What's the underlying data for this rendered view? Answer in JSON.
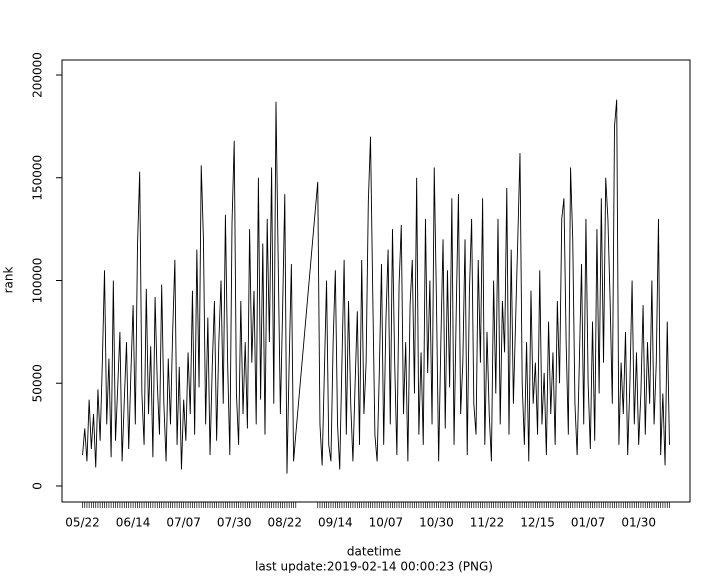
{
  "chart_data": {
    "type": "line",
    "y_label": "rank",
    "x_label": "datetime",
    "subtitle": "last update:2019-02-14 00:00:23 (PNG)",
    "color": "#000000",
    "ylim": [
      -7800,
      207300
    ],
    "yticks": [
      0,
      50000,
      100000,
      150000,
      200000
    ],
    "xticks": [
      "05/22",
      "06/14",
      "07/07",
      "07/30",
      "08/22",
      "09/14",
      "10/07",
      "10/30",
      "11/22",
      "12/15",
      "01/07",
      "01/30"
    ],
    "x": [
      "05/22",
      "05/23",
      "05/24",
      "05/25",
      "05/26",
      "05/27",
      "05/28",
      "05/29",
      "05/30",
      "05/31",
      "06/01",
      "06/02",
      "06/03",
      "06/04",
      "06/05",
      "06/06",
      "06/07",
      "06/08",
      "06/09",
      "06/10",
      "06/11",
      "06/12",
      "06/13",
      "06/14",
      "06/15",
      "06/16",
      "06/17",
      "06/18",
      "06/19",
      "06/20",
      "06/21",
      "06/22",
      "06/23",
      "06/24",
      "06/25",
      "06/26",
      "06/27",
      "06/28",
      "06/29",
      "06/30",
      "07/01",
      "07/02",
      "07/03",
      "07/04",
      "07/05",
      "07/06",
      "07/07",
      "07/08",
      "07/09",
      "07/10",
      "07/11",
      "07/12",
      "07/13",
      "07/14",
      "07/15",
      "07/16",
      "07/17",
      "07/18",
      "07/19",
      "07/20",
      "07/21",
      "07/22",
      "07/23",
      "07/24",
      "07/25",
      "07/26",
      "07/27",
      "07/28",
      "07/29",
      "07/30",
      "07/31",
      "08/01",
      "08/02",
      "08/03",
      "08/04",
      "08/05",
      "08/06",
      "08/07",
      "08/08",
      "08/09",
      "08/10",
      "08/11",
      "08/12",
      "08/13",
      "08/14",
      "08/15",
      "08/16",
      "08/17",
      "08/18",
      "08/19",
      "08/20",
      "08/21",
      "08/22",
      "08/23",
      "08/24",
      "08/25",
      "08/26",
      "08/27",
      "09/06",
      "09/07",
      "09/08",
      "09/09",
      "09/10",
      "09/11",
      "09/12",
      "09/13",
      "09/14",
      "09/15",
      "09/16",
      "09/17",
      "09/18",
      "09/19",
      "09/20",
      "09/21",
      "09/22",
      "09/23",
      "09/24",
      "09/25",
      "09/26",
      "09/27",
      "09/28",
      "09/29",
      "09/30",
      "10/01",
      "10/02",
      "10/03",
      "10/04",
      "10/05",
      "10/06",
      "10/07",
      "10/08",
      "10/09",
      "10/10",
      "10/11",
      "10/12",
      "10/13",
      "10/14",
      "10/15",
      "10/16",
      "10/17",
      "10/18",
      "10/19",
      "10/20",
      "10/21",
      "10/22",
      "10/23",
      "10/24",
      "10/25",
      "10/26",
      "10/27",
      "10/28",
      "10/29",
      "10/30",
      "10/31",
      "11/01",
      "11/02",
      "11/03",
      "11/04",
      "11/05",
      "11/06",
      "11/07",
      "11/08",
      "11/09",
      "11/10",
      "11/11",
      "11/12",
      "11/13",
      "11/14",
      "11/15",
      "11/16",
      "11/17",
      "11/18",
      "11/19",
      "11/20",
      "11/21",
      "11/22",
      "11/23",
      "11/24",
      "11/25",
      "11/26",
      "11/27",
      "11/28",
      "11/29",
      "11/30",
      "12/01",
      "12/02",
      "12/03",
      "12/04",
      "12/05",
      "12/06",
      "12/07",
      "12/08",
      "12/09",
      "12/10",
      "12/11",
      "12/12",
      "12/13",
      "12/14",
      "12/15",
      "12/16",
      "12/17",
      "12/18",
      "12/19",
      "12/20",
      "12/21",
      "12/22",
      "12/23",
      "12/24",
      "12/25",
      "12/26",
      "12/27",
      "12/28",
      "12/29",
      "12/30",
      "12/31",
      "01/01",
      "01/02",
      "01/03",
      "01/04",
      "01/05",
      "01/06",
      "01/07",
      "01/08",
      "01/09",
      "01/10",
      "01/11",
      "01/12",
      "01/13",
      "01/14",
      "01/15",
      "01/16",
      "01/17",
      "01/18",
      "01/19",
      "01/20",
      "01/21",
      "01/22",
      "01/23",
      "01/24",
      "01/25",
      "01/26",
      "01/27",
      "01/28",
      "01/29",
      "01/30",
      "01/31",
      "02/01",
      "02/02",
      "02/03",
      "02/04",
      "02/05",
      "02/06",
      "02/07",
      "02/08",
      "02/09",
      "02/10",
      "02/11",
      "02/12",
      "02/13"
    ],
    "values": [
      15000,
      28000,
      12000,
      42000,
      18000,
      35000,
      9000,
      47000,
      22000,
      60000,
      105000,
      30000,
      62000,
      14000,
      100000,
      22000,
      48000,
      75000,
      12000,
      42000,
      70000,
      18000,
      55000,
      88000,
      30000,
      117000,
      153000,
      45000,
      20000,
      96000,
      35000,
      68000,
      14000,
      92000,
      50000,
      25000,
      98000,
      40000,
      12000,
      62000,
      30000,
      75000,
      110000,
      20000,
      58000,
      8000,
      42000,
      22000,
      65000,
      35000,
      95000,
      25000,
      115000,
      48000,
      156000,
      120000,
      30000,
      82000,
      15000,
      58000,
      90000,
      22000,
      70000,
      100000,
      40000,
      132000,
      60000,
      15000,
      128000,
      168000,
      45000,
      20000,
      90000,
      35000,
      70000,
      28000,
      125000,
      60000,
      95000,
      30000,
      150000,
      42000,
      118000,
      25000,
      130000,
      70000,
      155000,
      40000,
      187000,
      110000,
      35000,
      85000,
      142000,
      6000,
      60000,
      108000,
      12000,
      25000,
      148000,
      30000,
      10000,
      55000,
      100000,
      20000,
      12000,
      70000,
      105000,
      30000,
      8000,
      60000,
      110000,
      25000,
      90000,
      40000,
      12000,
      50000,
      85000,
      20000,
      110000,
      35000,
      60000,
      138000,
      170000,
      95000,
      25000,
      12000,
      55000,
      108000,
      20000,
      80000,
      115000,
      30000,
      125000,
      60000,
      15000,
      98000,
      127000,
      35000,
      70000,
      12000,
      88000,
      110000,
      45000,
      150000,
      25000,
      65000,
      20000,
      130000,
      55000,
      100000,
      30000,
      155000,
      90000,
      12000,
      70000,
      120000,
      28000,
      105000,
      48000,
      140000,
      20000,
      85000,
      142000,
      35000,
      60000,
      120000,
      15000,
      95000,
      130000,
      40000,
      25000,
      110000,
      60000,
      140000,
      20000,
      75000,
      35000,
      12000,
      100000,
      45000,
      130000,
      30000,
      90000,
      65000,
      145000,
      25000,
      115000,
      40000,
      80000,
      120000,
      162000,
      50000,
      20000,
      70000,
      12000,
      95000,
      40000,
      60000,
      25000,
      105000,
      30000,
      55000,
      15000,
      80000,
      35000,
      65000,
      20000,
      90000,
      50000,
      130000,
      140000,
      70000,
      25000,
      155000,
      120000,
      40000,
      15000,
      60000,
      108000,
      30000,
      130000,
      50000,
      18000,
      80000,
      22000,
      125000,
      45000,
      140000,
      60000,
      150000,
      130000,
      90000,
      40000,
      175000,
      188000,
      20000,
      60000,
      35000,
      75000,
      15000,
      50000,
      100000,
      30000,
      65000,
      20000,
      45000,
      88000,
      25000,
      70000,
      40000,
      100000,
      30000,
      60000,
      130000,
      15000,
      45000,
      10000,
      80000,
      20000
    ]
  }
}
